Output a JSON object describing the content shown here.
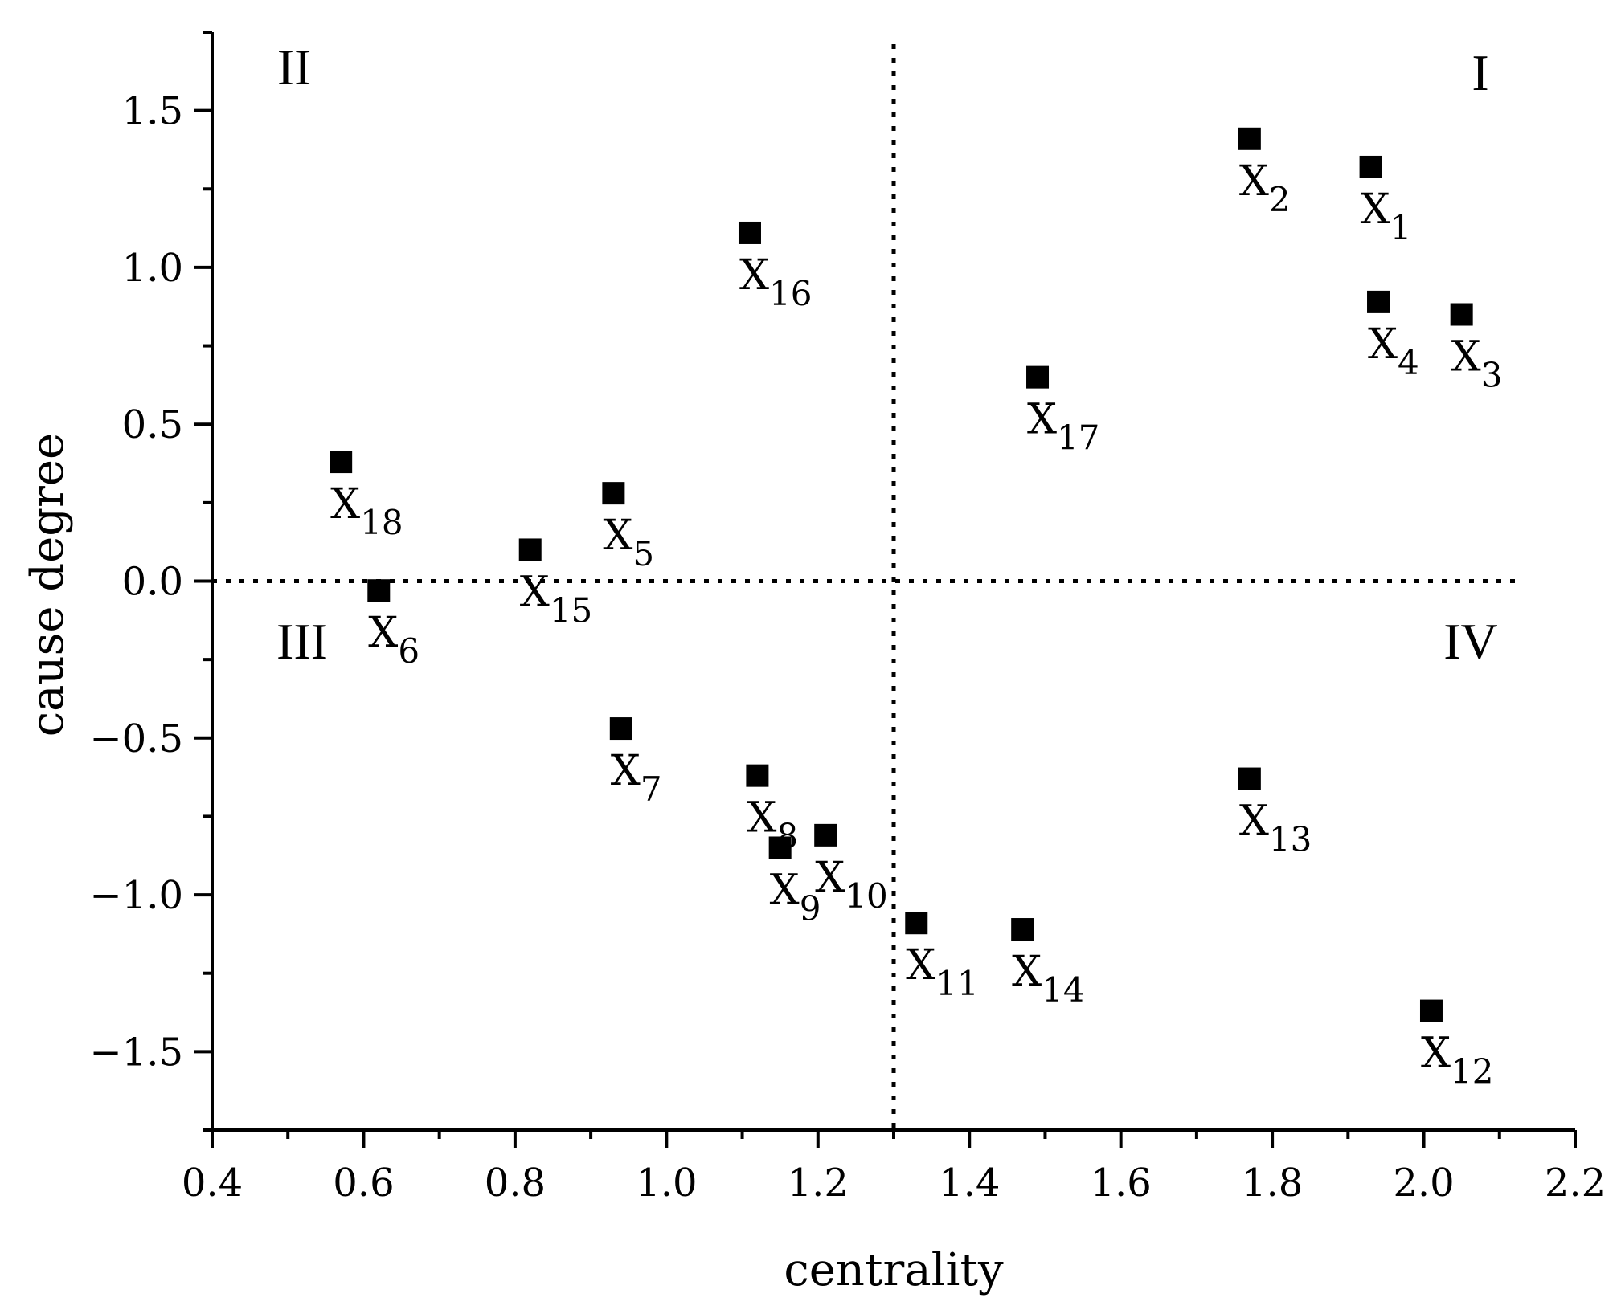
{
  "chart_data": {
    "type": "scatter",
    "title": "",
    "xlabel": "centrality",
    "ylabel": "cause degree",
    "xlim": [
      0.4,
      2.2
    ],
    "ylim": [
      -1.75,
      1.75
    ],
    "xticks": [
      0.4,
      0.6,
      0.8,
      1.0,
      1.2,
      1.4,
      1.6,
      1.8,
      2.0,
      2.2
    ],
    "xtick_labels": [
      "0.4",
      "0.6",
      "0.8",
      "1.0",
      "1.2",
      "1.4",
      "1.6",
      "1.8",
      "2.0",
      "2.2"
    ],
    "yticks": [
      -1.5,
      -1.0,
      -0.5,
      0.0,
      0.5,
      1.0,
      1.5
    ],
    "ytick_labels": [
      "−1.5",
      "−1.0",
      "−0.5",
      "0.0",
      "0.5",
      "1.0",
      "1.5"
    ],
    "grid": false,
    "reference_lines": {
      "x": 1.3,
      "y": 0.0,
      "style": "dotted"
    },
    "quadrants": [
      {
        "label": "I",
        "position": "top-right"
      },
      {
        "label": "II",
        "position": "top-left"
      },
      {
        "label": "III",
        "position": "bottom-left"
      },
      {
        "label": "IV",
        "position": "bottom-right"
      }
    ],
    "points": [
      {
        "label": "X",
        "sub": "1",
        "x": 1.93,
        "y": 1.32
      },
      {
        "label": "X",
        "sub": "2",
        "x": 1.77,
        "y": 1.41
      },
      {
        "label": "X",
        "sub": "3",
        "x": 2.05,
        "y": 0.85
      },
      {
        "label": "X",
        "sub": "4",
        "x": 1.94,
        "y": 0.89
      },
      {
        "label": "X",
        "sub": "5",
        "x": 0.93,
        "y": 0.28
      },
      {
        "label": "X",
        "sub": "6",
        "x": 0.62,
        "y": -0.03
      },
      {
        "label": "X",
        "sub": "7",
        "x": 0.94,
        "y": -0.47
      },
      {
        "label": "X",
        "sub": "8",
        "x": 1.12,
        "y": -0.62
      },
      {
        "label": "X",
        "sub": "9",
        "x": 1.15,
        "y": -0.85
      },
      {
        "label": "X",
        "sub": "10",
        "x": 1.21,
        "y": -0.81
      },
      {
        "label": "X",
        "sub": "11",
        "x": 1.33,
        "y": -1.09
      },
      {
        "label": "X",
        "sub": "12",
        "x": 2.01,
        "y": -1.37
      },
      {
        "label": "X",
        "sub": "13",
        "x": 1.77,
        "y": -0.63
      },
      {
        "label": "X",
        "sub": "14",
        "x": 1.47,
        "y": -1.11
      },
      {
        "label": "X",
        "sub": "15",
        "x": 0.82,
        "y": 0.1
      },
      {
        "label": "X",
        "sub": "16",
        "x": 1.11,
        "y": 1.11
      },
      {
        "label": "X",
        "sub": "17",
        "x": 1.49,
        "y": 0.65
      },
      {
        "label": "X",
        "sub": "18",
        "x": 0.57,
        "y": 0.38
      }
    ]
  }
}
